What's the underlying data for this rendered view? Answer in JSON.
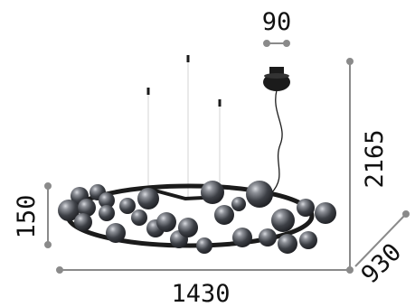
{
  "diagram": {
    "dimensions": {
      "canopy_width": "90",
      "total_height": "2165",
      "body_height": "150",
      "length": "1430",
      "depth": "930"
    }
  },
  "colors": {
    "dimension_line": "#8a8a8a",
    "text": "#111111",
    "metal": "#1b1b1b",
    "smoked_glass": "#3a3d42"
  }
}
